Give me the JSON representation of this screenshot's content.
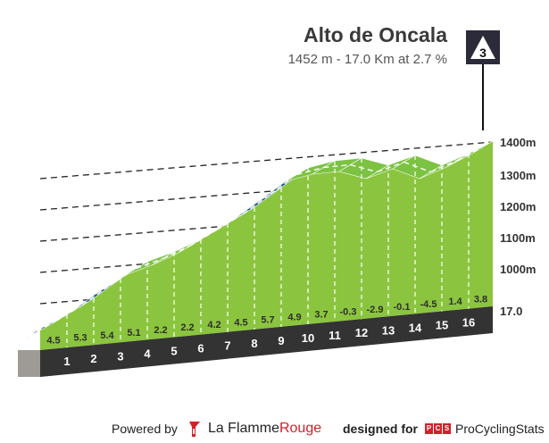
{
  "title": "Alto de Oncala",
  "subtitle": "1452 m - 17.0 Km at 2.7 %",
  "category_badge": "3",
  "chart_data": {
    "type": "area",
    "xlabel": "",
    "ylabel": "",
    "x_unit": "km",
    "distance_km": 17.0,
    "y_ticks": [
      {
        "value": 1000,
        "label": "1000m"
      },
      {
        "value": 1100,
        "label": "1100m"
      },
      {
        "value": 1200,
        "label": "1200m"
      },
      {
        "value": 1300,
        "label": "1300m"
      },
      {
        "value": 1400,
        "label": "1400m"
      }
    ],
    "baseline_label": "17.0",
    "km_labels": [
      "1",
      "2",
      "3",
      "4",
      "5",
      "6",
      "7",
      "8",
      "9",
      "10",
      "11",
      "12",
      "13",
      "14",
      "15",
      "16"
    ],
    "gradients": [
      "4.5",
      "5.3",
      "5.4",
      "5.1",
      "2.2",
      "2.2",
      "4.2",
      "4.5",
      "5.7",
      "4.9",
      "3.7",
      "-0.3",
      "-2.9",
      "-0.1",
      "-4.5",
      "1.4",
      "3.8"
    ],
    "segment_colors": [
      "blue",
      "blue",
      "blue",
      "blue",
      "green",
      "green",
      "blue",
      "blue",
      "blue",
      "blue",
      "green",
      "green",
      "green",
      "green",
      "green",
      "green",
      "green"
    ],
    "colors": {
      "steep": "#1d5d8c",
      "moderate": "#7cc243",
      "fill": "#8bc53f",
      "base": "#333333",
      "start_block": "#9e9a96"
    },
    "elevation_end_m": 1452
  },
  "footer": {
    "powered_by": "Powered by",
    "brand_la": "La Flamme",
    "brand_rouge": "Rouge",
    "designed_for": "designed for",
    "pcs_letters": [
      "P",
      "C",
      "S"
    ],
    "pcs_name": "ProCyclingStats"
  }
}
